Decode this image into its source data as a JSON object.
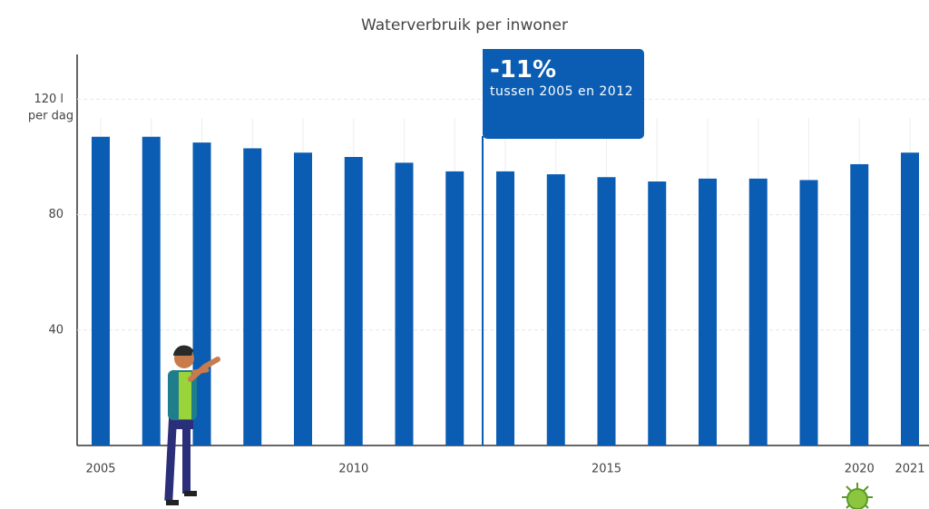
{
  "chart_data": {
    "type": "bar",
    "title": "Waterverbruik per inwoner",
    "categories": [
      "2005",
      null,
      null,
      null,
      null,
      "2010",
      null,
      null,
      null,
      null,
      "2015",
      null,
      null,
      null,
      null,
      "2020",
      "2021"
    ],
    "values": [
      107,
      107,
      105,
      103,
      101.5,
      100,
      98,
      95,
      95,
      94,
      93,
      91.5,
      92.5,
      92.5,
      92,
      97.5,
      101.5
    ],
    "color": "#0b5db3",
    "ylim": [
      0,
      135
    ],
    "yticks": [
      40,
      80,
      {
        "value": 120,
        "label": "120 l"
      }
    ],
    "y_unit": "per dag",
    "grid": true,
    "annotation": {
      "value": "-11%",
      "text": "tussen 2005 en 2012"
    }
  }
}
